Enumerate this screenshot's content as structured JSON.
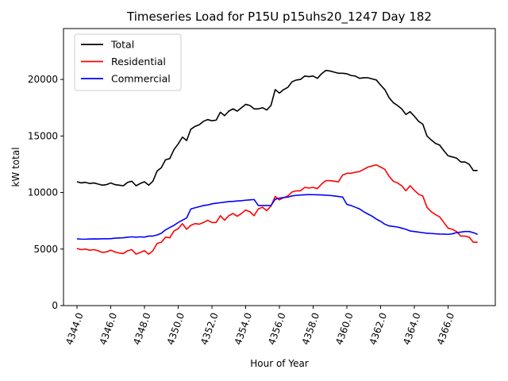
{
  "chart_data": {
    "type": "line",
    "title": "Timeseries Load for P15U p15uhs20_1247  Day 182",
    "xlabel": "Hour of Year",
    "ylabel": "kW total",
    "xlim": [
      4343.2,
      4368.8
    ],
    "ylim": [
      0,
      24500
    ],
    "x_ticks": [
      4344,
      4346,
      4348,
      4350,
      4352,
      4354,
      4356,
      4358,
      4360,
      4362,
      4364,
      4366
    ],
    "x_tick_labels": [
      "4344.0",
      "4346.0",
      "4348.0",
      "4350.0",
      "4352.0",
      "4354.0",
      "4356.0",
      "4358.0",
      "4360.0",
      "4362.0",
      "4364.0",
      "4366.0"
    ],
    "y_ticks": [
      0,
      5000,
      10000,
      15000,
      20000
    ],
    "y_tick_labels": [
      "0",
      "5000",
      "10000",
      "15000",
      "20000"
    ],
    "grid": false,
    "legend_position": "top-left",
    "x": [
      4344.0,
      4344.25,
      4344.5,
      4344.75,
      4345.0,
      4345.25,
      4345.5,
      4345.75,
      4346.0,
      4346.25,
      4346.5,
      4346.75,
      4347.0,
      4347.25,
      4347.5,
      4347.75,
      4348.0,
      4348.25,
      4348.5,
      4348.75,
      4349.0,
      4349.25,
      4349.5,
      4349.75,
      4350.0,
      4350.25,
      4350.5,
      4350.75,
      4351.0,
      4351.25,
      4351.5,
      4351.75,
      4352.0,
      4352.25,
      4352.5,
      4352.75,
      4353.0,
      4353.25,
      4353.5,
      4353.75,
      4354.0,
      4354.25,
      4354.5,
      4354.75,
      4355.0,
      4355.25,
      4355.5,
      4355.75,
      4356.0,
      4356.25,
      4356.5,
      4356.75,
      4357.0,
      4357.25,
      4357.5,
      4357.75,
      4358.0,
      4358.25,
      4358.5,
      4358.75,
      4359.0,
      4359.25,
      4359.5,
      4359.75,
      4360.0,
      4360.25,
      4360.5,
      4360.75,
      4361.0,
      4361.25,
      4361.5,
      4361.75,
      4362.0,
      4362.25,
      4362.5,
      4362.75,
      4363.0,
      4363.25,
      4363.5,
      4363.75,
      4364.0,
      4364.25,
      4364.5,
      4364.75,
      4365.0,
      4365.25,
      4365.5,
      4365.75,
      4366.0,
      4366.25,
      4366.5,
      4366.75,
      4367.0,
      4367.25,
      4367.5,
      4367.75
    ],
    "series": [
      {
        "name": "Total",
        "color": "#000000",
        "values": [
          10950,
          10850,
          10900,
          10800,
          10850,
          10750,
          10650,
          10700,
          10850,
          10700,
          10650,
          10600,
          10900,
          11000,
          10600,
          10800,
          10950,
          10650,
          11000,
          11900,
          12200,
          12900,
          13000,
          13800,
          14300,
          14900,
          14600,
          15600,
          15850,
          16000,
          16300,
          16450,
          16350,
          16400,
          17100,
          16800,
          17200,
          17400,
          17200,
          17500,
          17800,
          17700,
          17400,
          17400,
          17500,
          17300,
          17700,
          19100,
          18800,
          19100,
          19300,
          19800,
          19950,
          20000,
          20300,
          20250,
          20300,
          20100,
          20500,
          20800,
          20750,
          20650,
          20550,
          20550,
          20500,
          20350,
          20300,
          20100,
          20150,
          20150,
          20050,
          19950,
          19500,
          19100,
          18400,
          17950,
          17700,
          17400,
          16900,
          17150,
          16750,
          16300,
          16050,
          15000,
          14650,
          14350,
          14200,
          13700,
          13250,
          13150,
          13050,
          12700,
          12700,
          12500,
          11950,
          11950
        ]
      },
      {
        "name": "Residential",
        "color": "#ff0000",
        "values": [
          5050,
          4950,
          5000,
          4900,
          4950,
          4850,
          4700,
          4750,
          4900,
          4750,
          4650,
          4600,
          4850,
          4950,
          4550,
          4700,
          4850,
          4550,
          4850,
          5500,
          5600,
          6050,
          6000,
          6600,
          6800,
          7250,
          6750,
          7100,
          7250,
          7200,
          7350,
          7550,
          7350,
          7350,
          7950,
          7550,
          7950,
          8150,
          7900,
          8150,
          8450,
          8300,
          7950,
          8550,
          8700,
          8400,
          8800,
          9650,
          9350,
          9550,
          9700,
          10050,
          10150,
          10150,
          10450,
          10400,
          10450,
          10350,
          10750,
          11050,
          11050,
          11000,
          10950,
          11550,
          11700,
          11700,
          11800,
          11850,
          12050,
          12250,
          12350,
          12450,
          12250,
          12050,
          11450,
          11000,
          10850,
          10600,
          10150,
          10600,
          10200,
          9850,
          9700,
          8700,
          8300,
          8050,
          7850,
          7350,
          6850,
          6750,
          6550,
          6150,
          6150,
          6050,
          5600,
          5600
        ]
      },
      {
        "name": "Commercial",
        "color": "#0000ff",
        "values": [
          5900,
          5880,
          5870,
          5890,
          5900,
          5890,
          5910,
          5910,
          5920,
          5960,
          5980,
          6000,
          6050,
          6080,
          6050,
          6080,
          6060,
          6150,
          6150,
          6250,
          6400,
          6700,
          6900,
          7100,
          7350,
          7550,
          7750,
          8550,
          8650,
          8750,
          8850,
          8900,
          9000,
          9050,
          9100,
          9150,
          9200,
          9220,
          9250,
          9280,
          9320,
          9350,
          9380,
          8850,
          8850,
          8850,
          8850,
          9400,
          9500,
          9550,
          9600,
          9700,
          9750,
          9780,
          9800,
          9820,
          9810,
          9800,
          9790,
          9760,
          9740,
          9700,
          9650,
          9600,
          8950,
          8850,
          8700,
          8550,
          8300,
          8100,
          7900,
          7650,
          7450,
          7200,
          7050,
          7000,
          6950,
          6850,
          6750,
          6600,
          6550,
          6500,
          6450,
          6400,
          6380,
          6350,
          6330,
          6320,
          6300,
          6350,
          6450,
          6500,
          6550,
          6550,
          6450,
          6300
        ]
      }
    ]
  }
}
